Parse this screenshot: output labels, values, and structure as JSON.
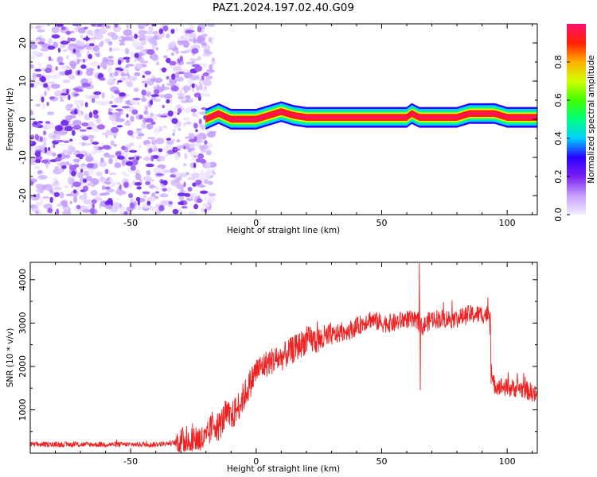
{
  "title": "PAZ1.2024.197.02.40.G09",
  "colors": {
    "snr_line": "#ee2222",
    "noise_purple": "#7a2cf0",
    "colorbar_stops": [
      "#f3ecff",
      "#c7a0ff",
      "#7a1ff0",
      "#2a00ff",
      "#00d0ff",
      "#00ff80",
      "#40ff00",
      "#d0ff00",
      "#ffb000",
      "#ff2000",
      "#ff1070"
    ]
  },
  "chart_data": [
    {
      "type": "heatmap",
      "name": "spectrogram",
      "xlabel": "Height of straight line (km)",
      "ylabel": "Frequency (Hz)",
      "xlim": [
        -90,
        112
      ],
      "ylim": [
        -25,
        25
      ],
      "xticks": [
        -50,
        0,
        50,
        100
      ],
      "yticks": [
        -20,
        -10,
        0,
        10,
        20
      ],
      "signal_onset_km": -20,
      "colorbar": {
        "label": "Normalized spectral amplitude",
        "range": [
          0.0,
          1.0
        ],
        "ticks": [
          0.0,
          0.2,
          0.4,
          0.6,
          0.8
        ]
      },
      "signal_track": {
        "x": [
          -20,
          -15,
          -10,
          -5,
          0,
          5,
          10,
          15,
          20,
          40,
          60,
          62,
          65,
          70,
          80,
          85,
          95,
          100,
          112
        ],
        "freq": [
          0,
          1.5,
          0,
          0,
          0,
          1,
          2,
          1,
          0.5,
          0.5,
          0.5,
          1.5,
          0.5,
          0.5,
          0.5,
          1.5,
          1.5,
          0.5,
          0.5
        ]
      }
    },
    {
      "type": "line",
      "name": "snr",
      "xlabel": "Height of straight line (km)",
      "ylabel": "SNR (10 * v/v)",
      "xlim": [
        -90,
        112
      ],
      "ylim": [
        0,
        4400
      ],
      "xticks": [
        -50,
        0,
        50,
        100
      ],
      "yticks": [
        1000,
        2000,
        3000,
        4000
      ],
      "series": [
        {
          "x": [
            -90,
            -80,
            -70,
            -60,
            -50,
            -40,
            -30,
            -25,
            -20,
            -17,
            -15,
            -12,
            -10,
            -5,
            0,
            5,
            10,
            15,
            20,
            25,
            30,
            40,
            45,
            50,
            55,
            60,
            65,
            66,
            70,
            75,
            80,
            85,
            90,
            93,
            94,
            100,
            105,
            110,
            112
          ],
          "y": [
            200,
            200,
            200,
            200,
            200,
            200,
            250,
            350,
            300,
            700,
            600,
            900,
            800,
            1300,
            1900,
            2100,
            2200,
            2400,
            2600,
            2600,
            2700,
            2900,
            3100,
            3000,
            3000,
            3100,
            3000,
            2900,
            3100,
            3100,
            3100,
            3200,
            3200,
            3200,
            1600,
            1500,
            1500,
            1400,
            1300
          ]
        }
      ]
    }
  ]
}
